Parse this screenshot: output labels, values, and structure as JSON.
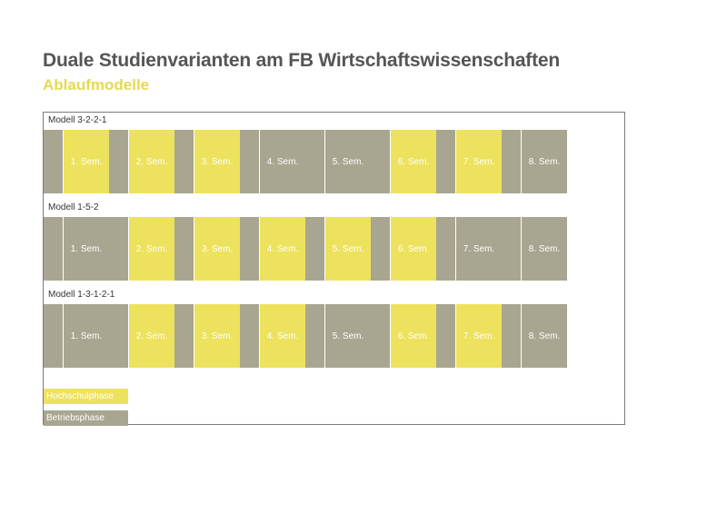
{
  "header": {
    "title": "Duale Studienvarianten am FB Wirtschaftswissenschaften",
    "subtitle": "Ablaufmodelle"
  },
  "colors": {
    "hochschulphase": "#ede25d",
    "betriebsphase": "#a8a690",
    "separator": "#ffffff"
  },
  "models": [
    {
      "label": "Modell 3-2-2-1",
      "gaps": [
        "betrieb",
        "betrieb",
        "betrieb",
        "betrieb",
        "betrieb",
        "betrieb",
        "betrieb",
        "betrieb"
      ],
      "semesters": [
        {
          "label": "1. Sem.",
          "phase": "hochschul"
        },
        {
          "label": "2. Sem.",
          "phase": "hochschul"
        },
        {
          "label": "3. Sem.",
          "phase": "hochschul"
        },
        {
          "label": "4. Sem.",
          "phase": "betrieb"
        },
        {
          "label": "5. Sem.",
          "phase": "betrieb"
        },
        {
          "label": "6. Sem.",
          "phase": "hochschul"
        },
        {
          "label": "7. Sem.",
          "phase": "hochschul"
        },
        {
          "label": "8. Sem.",
          "phase": "betrieb"
        }
      ]
    },
    {
      "label": "Modell 1-5-2",
      "gaps": [
        "betrieb",
        "betrieb",
        "betrieb",
        "betrieb",
        "betrieb",
        "betrieb",
        "betrieb",
        "betrieb"
      ],
      "semesters": [
        {
          "label": "1. Sem.",
          "phase": "betrieb"
        },
        {
          "label": "2. Sem.",
          "phase": "hochschul"
        },
        {
          "label": "3. Sem.",
          "phase": "hochschul"
        },
        {
          "label": "4. Sem.",
          "phase": "hochschul"
        },
        {
          "label": "5. Sem.",
          "phase": "hochschul"
        },
        {
          "label": "6. Sem.",
          "phase": "hochschul"
        },
        {
          "label": "7. Sem.",
          "phase": "betrieb"
        },
        {
          "label": "8. Sem.",
          "phase": "betrieb"
        }
      ]
    },
    {
      "label": "Modell 1-3-1-2-1",
      "gaps": [
        "betrieb",
        "betrieb",
        "betrieb",
        "betrieb",
        "betrieb",
        "betrieb",
        "betrieb",
        "betrieb"
      ],
      "semesters": [
        {
          "label": "1. Sem.",
          "phase": "betrieb"
        },
        {
          "label": "2. Sem.",
          "phase": "hochschul"
        },
        {
          "label": "3. Sem.",
          "phase": "hochschul"
        },
        {
          "label": "4. Sem.",
          "phase": "hochschul"
        },
        {
          "label": "5. Sem.",
          "phase": "betrieb"
        },
        {
          "label": "6. Sem.",
          "phase": "hochschul"
        },
        {
          "label": "7. Sem.",
          "phase": "hochschul"
        },
        {
          "label": "8. Sem.",
          "phase": "betrieb"
        }
      ]
    }
  ],
  "legend": [
    {
      "label": "Hochschulphase",
      "phase": "hochschul"
    },
    {
      "label": "Betriebsphase",
      "phase": "betrieb"
    }
  ]
}
